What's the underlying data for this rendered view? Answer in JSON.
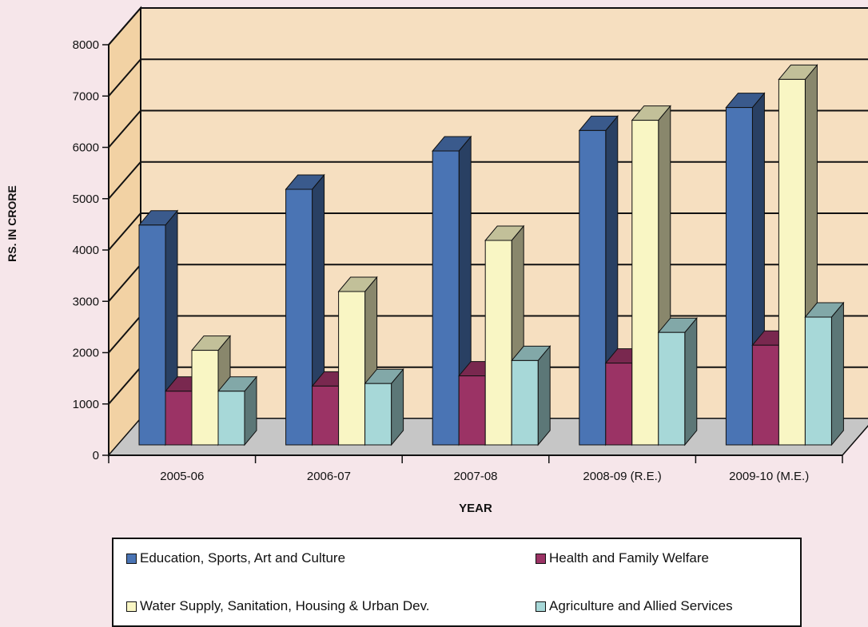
{
  "chart_data": {
    "type": "bar",
    "title": "",
    "xlabel": "YEAR",
    "ylabel": "RS. IN CRORE",
    "ylim": [
      0,
      8000
    ],
    "yticks": [
      "0",
      "1000",
      "2000",
      "3000",
      "4000",
      "5000",
      "6000",
      "7000",
      "8000"
    ],
    "categories": [
      "2005-06",
      "2006-07",
      "2007-08",
      "2008-09 (R.E.)",
      "2009-10 (M.E.)"
    ],
    "grid": true,
    "legend_position": "bottom",
    "series": [
      {
        "name": "Education, Sports, Art and Culture",
        "color": "#4a74b4",
        "values": [
          4300,
          5000,
          5750,
          6150,
          6600
        ]
      },
      {
        "name": "Health and Family Welfare",
        "color": "#9b3365",
        "values": [
          1050,
          1150,
          1350,
          1600,
          1950
        ]
      },
      {
        "name": "Water Supply, Sanitation, Housing & Urban Dev.",
        "color": "#f9f6c4",
        "values": [
          1850,
          3000,
          4000,
          6350,
          7150
        ]
      },
      {
        "name": "Agriculture and Allied Services",
        "color": "#a7d8d8",
        "values": [
          1050,
          1200,
          1650,
          2200,
          2500
        ]
      }
    ]
  }
}
